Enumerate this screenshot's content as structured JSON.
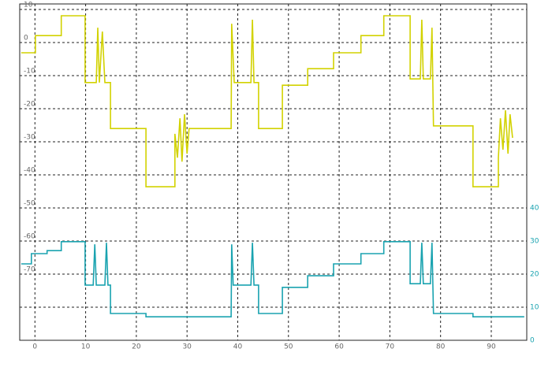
{
  "chart_data": {
    "type": "line",
    "xlim": [
      -3,
      97
    ],
    "xticks": [
      0,
      10,
      20,
      30,
      40,
      50,
      60,
      70,
      80,
      90
    ],
    "ylim": [
      -90,
      10
    ],
    "yticks": [
      10,
      0,
      -10,
      -20,
      -30,
      -40,
      -50,
      -60,
      -70
    ],
    "y2lim": [
      0,
      100
    ],
    "y2ticks": [
      0,
      10,
      20,
      30,
      40
    ],
    "grid": true,
    "series": [
      {
        "color": "#d2d200",
        "x": [
          -2.7,
          0.1,
          0.1,
          5.2,
          5.2,
          9.9,
          9.9,
          12.1,
          12.4,
          12.7,
          13.3,
          13.8,
          14.9,
          14.9,
          21.9,
          21.9,
          27.6,
          27.6,
          28.1,
          28.6,
          29,
          29.5,
          30,
          30.4,
          38.7,
          38.8,
          39.3,
          42.6,
          42.9,
          43.2,
          44.1,
          44.1,
          48.8,
          48.8,
          53.8,
          53.8,
          58.9,
          58.9,
          64.3,
          64.3,
          68.8,
          68.8,
          74,
          74,
          76,
          76.3,
          76.6,
          78,
          78.3,
          78.6,
          86.4,
          86.4,
          91.4,
          91.4,
          91.8,
          92.3,
          92.8,
          93.3,
          93.7,
          94.2
        ],
        "values": [
          -3.1,
          -3.1,
          2.1,
          2.1,
          8.1,
          8.1,
          -12.1,
          -12.1,
          4.5,
          -12.1,
          3.3,
          -12.1,
          -12.1,
          -26,
          -26,
          -43.6,
          -43.6,
          -27.6,
          -34.8,
          -22.9,
          -36,
          -21.7,
          -33.6,
          -26,
          -26,
          5.7,
          -12.1,
          -12.1,
          6.9,
          -12.1,
          -12.1,
          -26,
          -26,
          -12.9,
          -12.9,
          -7.9,
          -7.9,
          -3.1,
          -3.1,
          2.1,
          2.1,
          8.1,
          8.1,
          -11,
          -11,
          6.9,
          -11,
          -11,
          4.5,
          -25.2,
          -25.2,
          -43.6,
          -43.6,
          -34.8,
          -22.9,
          -32.4,
          -20.5,
          -33.6,
          -21.7,
          -28.8
        ]
      },
      {
        "color": "#1aa3b0",
        "axis": "y2",
        "x": [
          -2.7,
          -0.7,
          -0.7,
          2.4,
          2.4,
          5.2,
          5.2,
          9.9,
          9.9,
          11.5,
          11.8,
          12.1,
          13.8,
          14.1,
          14.4,
          14.9,
          14.9,
          21.9,
          21.9,
          38.7,
          38.8,
          39.1,
          42.6,
          42.9,
          43.2,
          44.1,
          44.1,
          48.8,
          48.8,
          53.8,
          53.8,
          58.9,
          58.9,
          64.3,
          64.3,
          68.8,
          68.8,
          74,
          74,
          76,
          76.3,
          76.6,
          78,
          78.3,
          78.6,
          86.4,
          86.4,
          96.5
        ],
        "values": [
          23.1,
          23.1,
          26.2,
          26.2,
          27.1,
          27.1,
          29.8,
          29.8,
          16.7,
          16.7,
          29,
          16.7,
          16.7,
          29.5,
          16.7,
          16.7,
          8.1,
          8.1,
          7.1,
          7.1,
          29,
          16.7,
          16.7,
          29.5,
          16.7,
          16.7,
          8.1,
          8.1,
          16,
          16,
          19.5,
          19.5,
          23.1,
          23.1,
          26.2,
          26.2,
          29.8,
          29.8,
          17.1,
          17.1,
          29.5,
          17.1,
          17.1,
          29.5,
          8.1,
          8.1,
          7.1,
          7.1
        ]
      }
    ]
  }
}
